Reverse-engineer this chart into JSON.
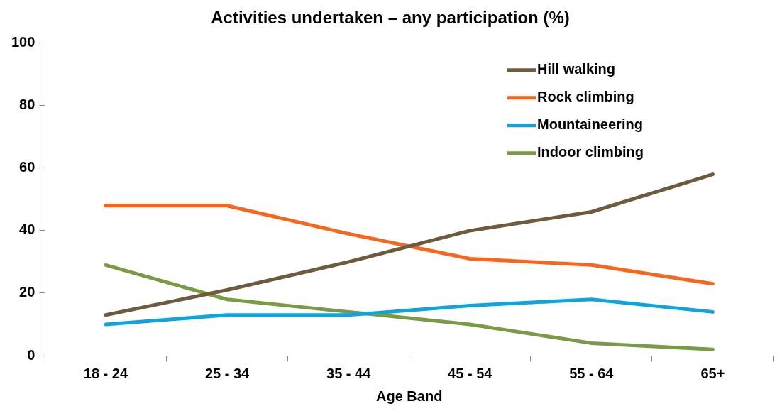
{
  "chart_data": {
    "type": "line",
    "title": "Activities undertaken – any participation (%)",
    "xlabel": "Age Band",
    "categories": [
      "18 - 24",
      "25 - 34",
      "35 - 44",
      "45 - 54",
      "55 - 64",
      "65+"
    ],
    "ylim": [
      0,
      100
    ],
    "yticks": [
      0,
      20,
      40,
      60,
      80,
      100
    ],
    "grid": false,
    "legend": "top right",
    "marker": "none",
    "line_style": "solid",
    "series": [
      {
        "name": "Hill walking",
        "color": "#6e5b3e",
        "values": [
          13,
          21,
          30,
          40,
          46,
          58
        ]
      },
      {
        "name": "Rock climbing",
        "color": "#f7661c",
        "values": [
          48,
          48,
          39,
          31,
          29,
          23
        ]
      },
      {
        "name": "Mountaineering",
        "color": "#0ea5dd",
        "values": [
          10,
          13,
          13,
          16,
          18,
          14
        ]
      },
      {
        "name": "Indoor climbing",
        "color": "#7a9a45",
        "values": [
          29,
          18,
          14,
          10,
          4,
          2
        ]
      }
    ]
  }
}
